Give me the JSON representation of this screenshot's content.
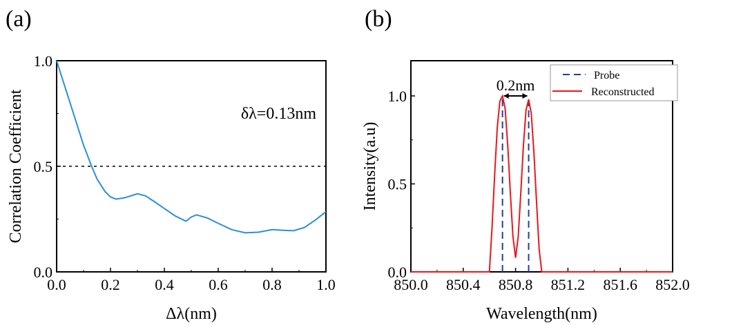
{
  "chart_data": [
    {
      "type": "line",
      "panel_label": "(a)",
      "xlabel": "Δλ(nm)",
      "ylabel": "Correlation Coefficient",
      "xlim": [
        0,
        1
      ],
      "ylim": [
        0,
        1
      ],
      "xticks": [
        "0.0",
        "0.2",
        "0.4",
        "0.6",
        "0.8",
        "1.0"
      ],
      "yticks": [
        "0.0",
        "0.5",
        "1.0"
      ],
      "annotation": "δλ=0.13nm",
      "threshold": 0.5,
      "line_color": "#2a8fd6",
      "x": [
        0,
        0.05,
        0.1,
        0.13,
        0.15,
        0.18,
        0.2,
        0.22,
        0.25,
        0.3,
        0.33,
        0.36,
        0.4,
        0.44,
        0.48,
        0.5,
        0.52,
        0.56,
        0.6,
        0.65,
        0.7,
        0.75,
        0.8,
        0.84,
        0.88,
        0.92,
        0.96,
        1.0
      ],
      "y": [
        1.0,
        0.8,
        0.6,
        0.5,
        0.44,
        0.38,
        0.355,
        0.345,
        0.35,
        0.37,
        0.36,
        0.335,
        0.3,
        0.265,
        0.24,
        0.26,
        0.27,
        0.255,
        0.23,
        0.2,
        0.185,
        0.188,
        0.2,
        0.197,
        0.195,
        0.21,
        0.245,
        0.285
      ]
    },
    {
      "type": "line",
      "panel_label": "(b)",
      "xlabel": "Wavelength(nm)",
      "ylabel": "Intensity(a.u)",
      "xlim": [
        850,
        852
      ],
      "ylim": [
        0,
        1.2
      ],
      "xticks": [
        "850.0",
        "850.4",
        "850.8",
        "851.2",
        "851.6",
        "852.0"
      ],
      "yticks": [
        "0.0",
        "0.5",
        "1.0"
      ],
      "annotation": "0.2nm",
      "legend": {
        "position": "top-right",
        "entries": [
          "Probe",
          "Reconstructed"
        ]
      },
      "series": [
        {
          "name": "Probe",
          "style": "dashed",
          "color": "#1f3fa0",
          "x": [
            850.7,
            850.9
          ],
          "y": [
            1.0,
            1.0
          ]
        },
        {
          "name": "Reconstructed",
          "style": "solid",
          "color": "#e8161b",
          "x": [
            850.0,
            850.6,
            850.62,
            850.64,
            850.66,
            850.68,
            850.7,
            850.72,
            850.74,
            850.76,
            850.78,
            850.8,
            850.82,
            850.84,
            850.86,
            850.88,
            850.9,
            850.92,
            850.94,
            850.96,
            850.98,
            851.0,
            852.0
          ],
          "y": [
            0,
            0,
            0.25,
            0.55,
            0.82,
            0.97,
            1.0,
            0.93,
            0.72,
            0.45,
            0.2,
            0.08,
            0.2,
            0.45,
            0.72,
            0.92,
            0.98,
            0.9,
            0.68,
            0.4,
            0.13,
            0,
            0
          ]
        }
      ]
    }
  ]
}
